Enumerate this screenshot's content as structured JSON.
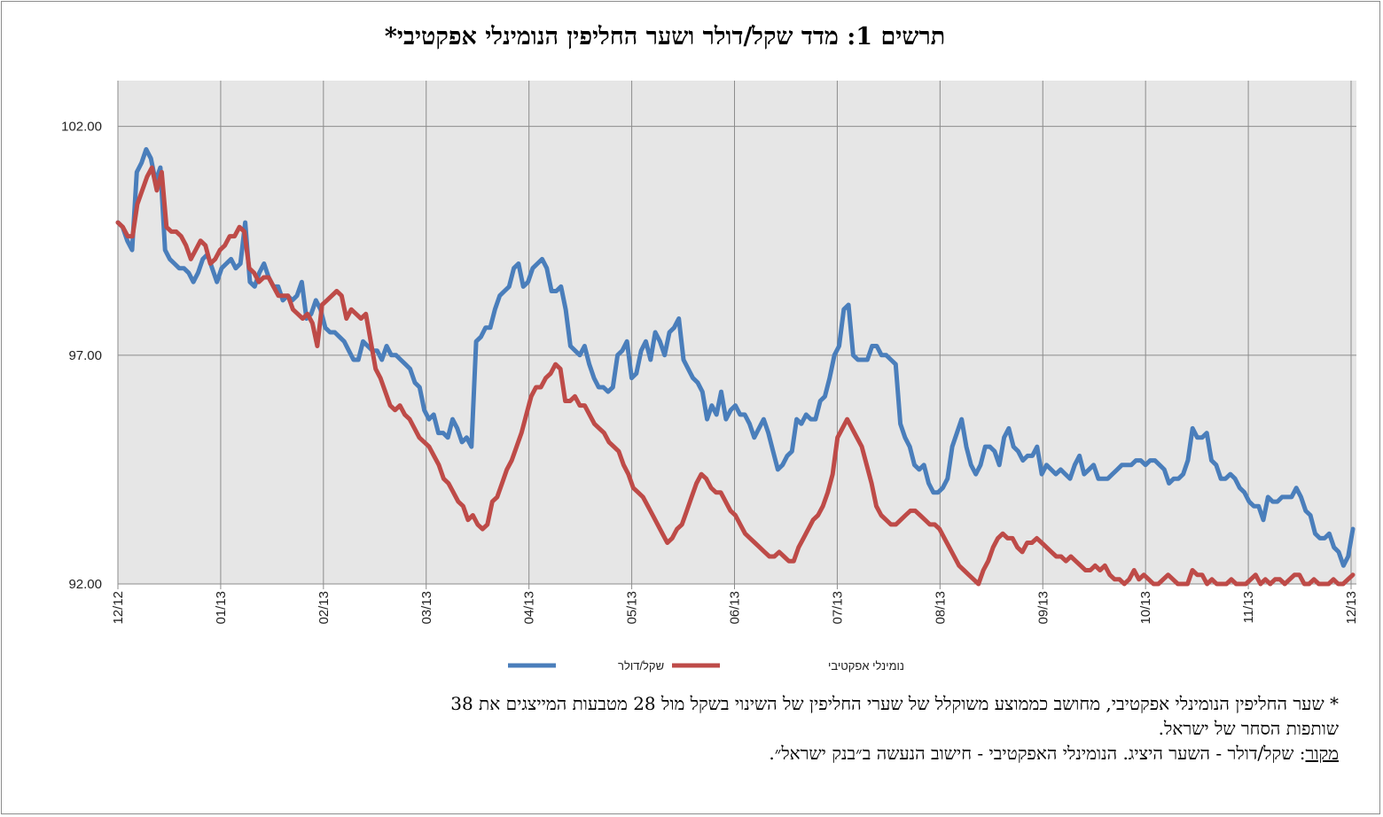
{
  "chart_data": {
    "type": "line",
    "title": "תרשים 1: מדד שקל/דולר ושער החליפין הנומינלי אפקטיבי*",
    "ylim": [
      92,
      103
    ],
    "yticks": [
      "102.00",
      "97.00",
      "92.00"
    ],
    "ytick_values": [
      102,
      97,
      92
    ],
    "x_labels": [
      "12/12",
      "01/13",
      "02/13",
      "03/13",
      "04/13",
      "05/13",
      "06/13",
      "07/13",
      "08/13",
      "09/13",
      "10/13",
      "11/13",
      "12/13"
    ],
    "grid": true,
    "legend_position": "bottom",
    "series": [
      {
        "name": "שקל/דולר",
        "color": "#4a7ebb",
        "values": [
          99.9,
          99.8,
          99.5,
          99.3,
          101.0,
          101.2,
          101.5,
          101.3,
          100.8,
          101.1,
          99.3,
          99.1,
          99.0,
          98.9,
          98.9,
          98.8,
          98.6,
          98.8,
          99.1,
          99.2,
          98.9,
          98.6,
          98.9,
          99.0,
          99.1,
          98.9,
          99.0,
          99.9,
          98.6,
          98.5,
          98.8,
          99.0,
          98.7,
          98.5,
          98.5,
          98.2,
          98.3,
          98.2,
          98.3,
          98.6,
          97.8,
          97.9,
          98.2,
          98.0,
          97.6,
          97.5,
          97.5,
          97.4,
          97.3,
          97.1,
          96.9,
          96.9,
          97.3,
          97.2,
          97.1,
          97.1,
          96.9,
          97.2,
          97.0,
          97.0,
          96.9,
          96.8,
          96.7,
          96.4,
          96.3,
          95.8,
          95.6,
          95.7,
          95.3,
          95.3,
          95.2,
          95.6,
          95.4,
          95.1,
          95.2,
          95.0,
          97.3,
          97.4,
          97.6,
          97.6,
          98.0,
          98.3,
          98.4,
          98.5,
          98.9,
          99.0,
          98.5,
          98.6,
          98.9,
          99.0,
          99.1,
          98.9,
          98.4,
          98.4,
          98.5,
          98.0,
          97.2,
          97.1,
          97.0,
          97.2,
          96.8,
          96.5,
          96.3,
          96.3,
          96.2,
          96.3,
          97.0,
          97.1,
          97.3,
          96.5,
          96.6,
          97.1,
          97.3,
          96.9,
          97.5,
          97.3,
          97.0,
          97.5,
          97.6,
          97.8,
          96.9,
          96.7,
          96.5,
          96.4,
          96.2,
          95.6,
          95.9,
          95.7,
          96.2,
          95.6,
          95.8,
          95.9,
          95.7,
          95.7,
          95.5,
          95.2,
          95.4,
          95.6,
          95.3,
          94.9,
          94.5,
          94.6,
          94.8,
          94.9,
          95.6,
          95.5,
          95.7,
          95.6,
          95.6,
          96.0,
          96.1,
          96.5,
          97.0,
          97.2,
          98.0,
          98.1,
          97.0,
          96.9,
          96.9,
          96.9,
          97.2,
          97.2,
          97.0,
          97.0,
          96.9,
          96.8,
          95.5,
          95.2,
          95.0,
          94.6,
          94.5,
          94.6,
          94.2,
          94.0,
          94.0,
          94.1,
          94.3,
          95.0,
          95.3,
          95.6,
          95.0,
          94.6,
          94.4,
          94.6,
          95.0,
          95.0,
          94.9,
          94.6,
          95.2,
          95.4,
          95.0,
          94.9,
          94.7,
          94.8,
          94.8,
          95.0,
          94.4,
          94.6,
          94.5,
          94.4,
          94.5,
          94.4,
          94.3,
          94.6,
          94.8,
          94.4,
          94.5,
          94.6,
          94.3,
          94.3,
          94.3,
          94.4,
          94.5,
          94.6,
          94.6,
          94.6,
          94.7,
          94.7,
          94.6,
          94.7,
          94.7,
          94.6,
          94.5,
          94.2,
          94.3,
          94.3,
          94.4,
          94.7,
          95.4,
          95.2,
          95.2,
          95.3,
          94.7,
          94.6,
          94.3,
          94.3,
          94.4,
          94.3,
          94.1,
          94.0,
          93.8,
          93.7,
          93.7,
          93.4,
          93.9,
          93.8,
          93.8,
          93.9,
          93.9,
          93.9,
          94.1,
          93.9,
          93.6,
          93.5,
          93.1,
          93.0,
          93.0,
          93.1,
          92.8,
          92.7,
          92.4,
          92.6,
          93.2
        ]
      },
      {
        "name": "נומינלי אפקטיבי",
        "color": "#be4b48",
        "values": [
          99.9,
          99.8,
          99.6,
          99.6,
          100.3,
          100.6,
          100.9,
          101.1,
          100.6,
          101.0,
          99.8,
          99.7,
          99.7,
          99.6,
          99.4,
          99.1,
          99.3,
          99.5,
          99.4,
          99.0,
          99.1,
          99.3,
          99.4,
          99.6,
          99.6,
          99.8,
          99.7,
          98.9,
          98.8,
          98.6,
          98.7,
          98.7,
          98.5,
          98.3,
          98.3,
          98.3,
          98.0,
          97.9,
          97.8,
          97.9,
          97.7,
          97.2,
          98.1,
          98.2,
          98.3,
          98.4,
          98.3,
          97.8,
          98.0,
          97.9,
          97.8,
          97.9,
          97.3,
          96.7,
          96.5,
          96.2,
          95.9,
          95.8,
          95.9,
          95.7,
          95.6,
          95.4,
          95.2,
          95.1,
          95.0,
          94.8,
          94.6,
          94.3,
          94.2,
          94.0,
          93.8,
          93.7,
          93.4,
          93.5,
          93.3,
          93.2,
          93.3,
          93.8,
          93.9,
          94.2,
          94.5,
          94.7,
          95.0,
          95.3,
          95.7,
          96.1,
          96.3,
          96.3,
          96.5,
          96.6,
          96.8,
          96.7,
          96.0,
          96.0,
          96.1,
          95.9,
          95.9,
          95.7,
          95.5,
          95.4,
          95.3,
          95.1,
          95.0,
          94.9,
          94.6,
          94.4,
          94.1,
          94.0,
          93.9,
          93.7,
          93.5,
          93.3,
          93.1,
          92.9,
          93.0,
          93.2,
          93.3,
          93.6,
          93.9,
          94.2,
          94.4,
          94.3,
          94.1,
          94.0,
          94.0,
          93.8,
          93.6,
          93.5,
          93.3,
          93.1,
          93.0,
          92.9,
          92.8,
          92.7,
          92.6,
          92.6,
          92.7,
          92.6,
          92.5,
          92.5,
          92.8,
          93.0,
          93.2,
          93.4,
          93.5,
          93.7,
          94.0,
          94.4,
          95.2,
          95.4,
          95.6,
          95.4,
          95.2,
          95.0,
          94.6,
          94.2,
          93.7,
          93.5,
          93.4,
          93.3,
          93.3,
          93.4,
          93.5,
          93.6,
          93.6,
          93.5,
          93.4,
          93.3,
          93.3,
          93.2,
          93.0,
          92.8,
          92.6,
          92.4,
          92.3,
          92.2,
          92.1,
          92.0,
          92.3,
          92.5,
          92.8,
          93.0,
          93.1,
          93.0,
          93.0,
          92.8,
          92.7,
          92.9,
          92.9,
          93.0,
          92.9,
          92.8,
          92.7,
          92.6,
          92.6,
          92.5,
          92.6,
          92.5,
          92.4,
          92.3,
          92.3,
          92.4,
          92.3,
          92.4,
          92.2,
          92.1,
          92.1,
          92.0,
          92.1,
          92.3,
          92.1,
          92.2,
          92.1,
          92.0,
          92.0,
          92.1,
          92.2,
          92.1,
          92.0,
          92.0,
          92.0,
          92.3,
          92.2,
          92.2,
          92.0,
          92.1,
          92.0,
          92.0,
          92.0,
          92.1,
          92.0,
          92.0,
          92.0,
          92.1,
          92.2,
          92.0,
          92.1,
          92.0,
          92.1,
          92.1,
          92.0,
          92.1,
          92.2,
          92.2,
          92.0,
          92.0,
          92.1,
          92.0,
          92.0,
          92.0,
          92.1,
          92.0,
          92.0,
          92.1,
          92.2
        ]
      }
    ]
  },
  "footnote": {
    "line1": "* שער החליפין הנומינלי אפקטיבי, מחושב כממוצע משוקלל של שערי החליפין של השינוי בשקל מול 28 מטבעות המייצגים את 38",
    "line2": "שותפות הסחר של ישראל.",
    "source_label": "מקור",
    "source_text": ": שקל/דולר - השער היציג. הנומינלי האפקטיבי - חישוב הנעשה ב״בנק ישראל״."
  }
}
